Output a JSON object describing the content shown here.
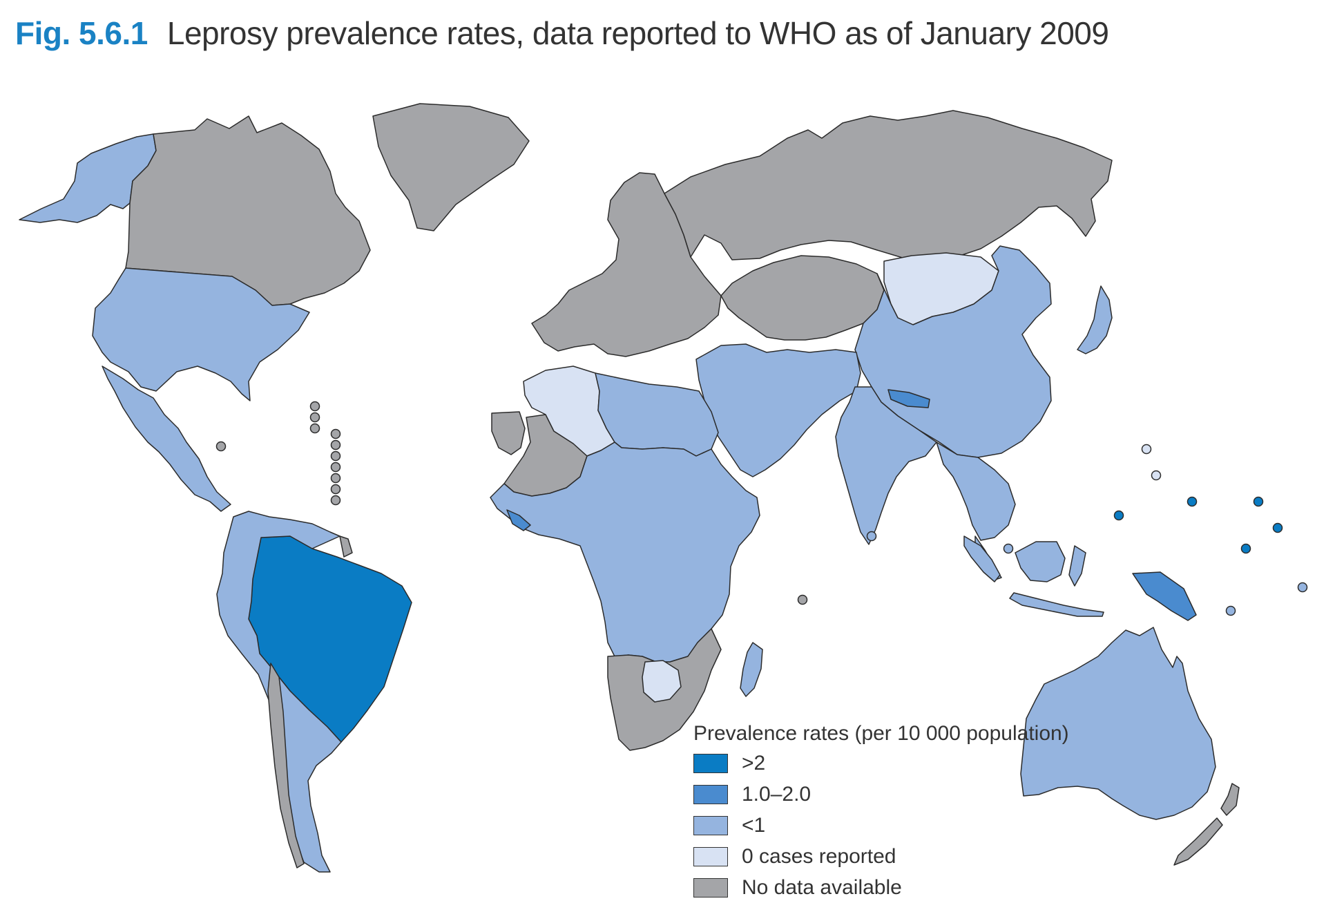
{
  "figure": {
    "number": "Fig. 5.6.1",
    "title": "Leprosy prevalence rates, data reported to WHO as of January 2009"
  },
  "colors": {
    "gt2": "#0a7cc4",
    "r1to2": "#4a8bcf",
    "lt1": "#95b4df",
    "zero": "#d8e2f3",
    "nodata": "#a4a5a8",
    "border": "#2b2b2b"
  },
  "legend": {
    "heading": "Prevalence rates (per 10 000 population)",
    "items": [
      {
        "key": "gt2",
        "label": ">2"
      },
      {
        "key": "r1to2",
        "label": "1.0–2.0"
      },
      {
        "key": "lt1",
        "label": "<1"
      },
      {
        "key": "zero",
        "label": "0 cases reported"
      },
      {
        "key": "nodata",
        "label": "No data available"
      }
    ]
  },
  "regions": [
    {
      "name": "alaska",
      "category": "lt1"
    },
    {
      "name": "canada",
      "category": "nodata"
    },
    {
      "name": "greenland",
      "category": "nodata"
    },
    {
      "name": "usa",
      "category": "lt1"
    },
    {
      "name": "mexico-central-america",
      "category": "lt1"
    },
    {
      "name": "brazil",
      "category": "gt2"
    },
    {
      "name": "south-america",
      "category": "lt1"
    },
    {
      "name": "chile",
      "category": "nodata"
    },
    {
      "name": "french-guiana",
      "category": "nodata"
    },
    {
      "name": "europe",
      "category": "nodata"
    },
    {
      "name": "russia",
      "category": "nodata"
    },
    {
      "name": "central-asia",
      "category": "nodata"
    },
    {
      "name": "mongolia",
      "category": "zero"
    },
    {
      "name": "china",
      "category": "lt1"
    },
    {
      "name": "middle-east",
      "category": "lt1"
    },
    {
      "name": "india",
      "category": "lt1"
    },
    {
      "name": "nepal",
      "category": "r1to2"
    },
    {
      "name": "southeast-asia",
      "category": "lt1"
    },
    {
      "name": "japan",
      "category": "lt1"
    },
    {
      "name": "algeria",
      "category": "zero"
    },
    {
      "name": "west-sahara",
      "category": "nodata"
    },
    {
      "name": "north-africa",
      "category": "lt1"
    },
    {
      "name": "africa",
      "category": "lt1"
    },
    {
      "name": "liberia",
      "category": "r1to2"
    },
    {
      "name": "southern-africa",
      "category": "nodata"
    },
    {
      "name": "botswana",
      "category": "zero"
    },
    {
      "name": "madagascar",
      "category": "lt1"
    },
    {
      "name": "australia",
      "category": "lt1"
    },
    {
      "name": "indonesia",
      "category": "lt1"
    },
    {
      "name": "papua-new-guinea",
      "category": "r1to2"
    },
    {
      "name": "new-zealand",
      "category": "nodata"
    }
  ]
}
